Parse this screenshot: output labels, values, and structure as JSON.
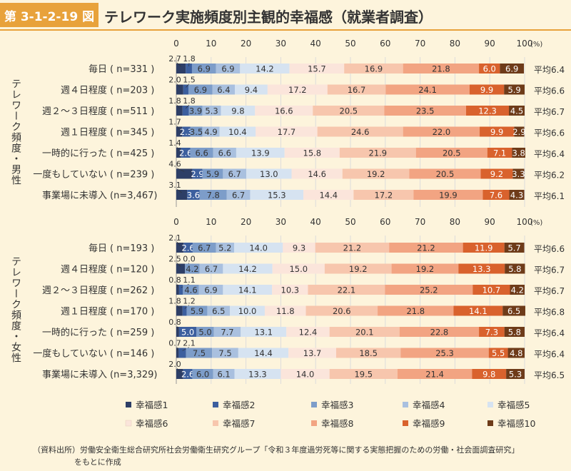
{
  "figure_no": "第 3-1-2-19 図",
  "title": "テレワーク実施頻度別主観的幸福感（就業者調査）",
  "source_note": {
    "label": "（資料出所）",
    "line1": "労働安全衛生総合研究所社会労働衛生研究グループ「令和３年度過労死等に関する実態把握のための労働・社会面調査研究」",
    "line2": "をもとに作成"
  },
  "avg_prefix": "平均",
  "percent_unit": "(%)",
  "chart_data": [
    {
      "type": "bar",
      "stacked": true,
      "orientation": "horizontal",
      "group_label": "テレワーク頻度・男性",
      "xlim": [
        0,
        100
      ],
      "xticks": [
        0,
        10,
        20,
        30,
        40,
        50,
        60,
        70,
        80,
        90,
        100
      ],
      "categories": [
        {
          "label": "毎日",
          "n": "( n=331 )",
          "avg": "6.4",
          "values": [
            2.7,
            1.8,
            6.9,
            6.9,
            14.2,
            15.7,
            16.9,
            21.8,
            6.0,
            6.9
          ],
          "labels": [
            "2.7",
            "1.8",
            "6.9",
            "6.9",
            "14.2",
            "15.7",
            "16.9",
            "21.8",
            "6.0",
            "6.9"
          ]
        },
        {
          "label": "週４日程度",
          "n": "( n=203 )",
          "avg": "6.6",
          "values": [
            2.0,
            1.5,
            6.9,
            6.4,
            9.4,
            17.2,
            16.7,
            24.1,
            9.9,
            5.9
          ],
          "labels": [
            "2.0",
            "1.5",
            "6.9",
            "6.4",
            "9.4",
            "17.2",
            "16.7",
            "24.1",
            "9.9",
            "5.9"
          ]
        },
        {
          "label": "週２～３日程度",
          "n": "( n=511 )",
          "avg": "6.7",
          "values": [
            1.8,
            1.8,
            3.9,
            5.3,
            9.8,
            16.6,
            20.5,
            23.5,
            12.3,
            4.5
          ],
          "labels": [
            "1.8",
            "1.8",
            "3.9",
            "5.3",
            "9.8",
            "16.6",
            "20.5",
            "23.5",
            "12.3",
            "4.5"
          ]
        },
        {
          "label": "週１日程度",
          "n": "( n=345 )",
          "avg": "6.6",
          "values": [
            1.7,
            2.3,
            3.5,
            4.9,
            10.4,
            17.7,
            24.6,
            22.0,
            9.9,
            2.9
          ],
          "labels": [
            "1.7",
            "2.3",
            "3.5",
            "4.9",
            "10.4",
            "17.7",
            "24.6",
            "22.0",
            "9.9",
            "2.9"
          ]
        },
        {
          "label": "一時的に行った",
          "n": "( n=425 )",
          "avg": "6.4",
          "values": [
            1.4,
            2.6,
            6.6,
            6.6,
            13.9,
            15.8,
            21.9,
            20.5,
            7.1,
            3.8
          ],
          "labels": [
            "1.4",
            "2.6",
            "6.6",
            "6.6",
            "13.9",
            "15.8",
            "21.9",
            "20.5",
            "7.1",
            "3.8"
          ]
        },
        {
          "label": "一度もしていない",
          "n": "( n=239 )",
          "avg": "6.2",
          "values": [
            4.6,
            2.9,
            5.9,
            6.7,
            13.0,
            14.6,
            19.2,
            20.5,
            9.2,
            3.3
          ],
          "labels": [
            "4.6",
            "2.9",
            "5.9",
            "6.7",
            "13.0",
            "14.6",
            "19.2",
            "20.5",
            "9.2",
            "3.3"
          ]
        },
        {
          "label": "事業場に未導入",
          "n": "(n=3,467)",
          "avg": "6.1",
          "values": [
            3.1,
            3.6,
            7.8,
            6.7,
            15.3,
            14.4,
            17.2,
            19.9,
            7.6,
            4.3
          ],
          "labels": [
            "3.1",
            "3.6",
            "7.8",
            "6.7",
            "15.3",
            "14.4",
            "17.2",
            "19.9",
            "7.6",
            "4.3"
          ]
        }
      ]
    },
    {
      "type": "bar",
      "stacked": true,
      "orientation": "horizontal",
      "group_label": "テレワーク頻度・女性",
      "xlim": [
        0,
        100
      ],
      "xticks": [
        0,
        10,
        20,
        30,
        40,
        50,
        60,
        70,
        80,
        90,
        100
      ],
      "categories": [
        {
          "label": "毎日",
          "n": "( n=193 )",
          "avg": "6.6",
          "values": [
            2.1,
            2.6,
            6.7,
            5.2,
            14.0,
            9.3,
            21.2,
            21.2,
            11.9,
            5.7
          ],
          "labels": [
            "2.1",
            "2.6",
            "6.7",
            "5.2",
            "14.0",
            "9.3",
            "21.2",
            "21.2",
            "11.9",
            "5.7"
          ]
        },
        {
          "label": "週４日程度",
          "n": "( n=120 )",
          "avg": "6.7",
          "values": [
            2.5,
            0.0,
            4.2,
            6.7,
            14.2,
            15.0,
            19.2,
            19.2,
            13.3,
            5.8
          ],
          "labels": [
            "2.5",
            "0.0",
            "4.2",
            "6.7",
            "14.2",
            "15.0",
            "19.2",
            "19.2",
            "13.3",
            "5.8"
          ]
        },
        {
          "label": "週２～３日程度",
          "n": "( n=262 )",
          "avg": "6.7",
          "values": [
            0.8,
            1.1,
            4.6,
            6.9,
            14.1,
            10.3,
            22.1,
            25.2,
            10.7,
            4.2
          ],
          "labels": [
            "0.8",
            "1.1",
            "4.6",
            "6.9",
            "14.1",
            "10.3",
            "22.1",
            "25.2",
            "10.7",
            "4.2"
          ]
        },
        {
          "label": "週１日程度",
          "n": "( n=170 )",
          "avg": "6.8",
          "values": [
            1.8,
            1.2,
            5.9,
            6.5,
            10.0,
            11.8,
            20.6,
            21.8,
            14.1,
            6.5
          ],
          "labels": [
            "1.8",
            "1.2",
            "5.9",
            "6.5",
            "10.0",
            "11.8",
            "20.6",
            "21.8",
            "14.1",
            "6.5"
          ]
        },
        {
          "label": "一時的に行った",
          "n": "( n=259 )",
          "avg": "6.4",
          "values": [
            0.8,
            5.0,
            5.0,
            7.7,
            13.1,
            12.4,
            20.1,
            22.8,
            7.3,
            5.8
          ],
          "labels": [
            "0.8",
            "5.0",
            "5.0",
            "7.7",
            "13.1",
            "12.4",
            "20.1",
            "22.8",
            "7.3",
            "5.8"
          ]
        },
        {
          "label": "一度もしていない",
          "n": "( n=146 )",
          "avg": "6.4",
          "values": [
            0.7,
            2.1,
            7.5,
            7.5,
            14.4,
            13.7,
            18.5,
            25.3,
            5.5,
            4.8
          ],
          "labels": [
            "0.7",
            "2.1",
            "7.5",
            "7.5",
            "14.4",
            "13.7",
            "18.5",
            "25.3",
            "5.5",
            "4.8"
          ]
        },
        {
          "label": "事業場に未導入",
          "n": "(n=3,329)",
          "avg": "6.5",
          "values": [
            2.0,
            2.6,
            6.0,
            6.1,
            13.3,
            14.0,
            19.5,
            21.4,
            9.8,
            5.3
          ],
          "labels": [
            "2.0",
            "2.6",
            "6.0",
            "6.1",
            "13.3",
            "14.0",
            "19.5",
            "21.4",
            "9.8",
            "5.3"
          ]
        }
      ]
    }
  ],
  "legend": [
    {
      "label": "幸福感1",
      "color": "#2d3e66"
    },
    {
      "label": "幸福感2",
      "color": "#3c5f9e"
    },
    {
      "label": "幸福感3",
      "color": "#7d9dc9"
    },
    {
      "label": "幸福感4",
      "color": "#a9c0df"
    },
    {
      "label": "幸福感5",
      "color": "#d6e3f1"
    },
    {
      "label": "幸福感6",
      "color": "#fbe5db"
    },
    {
      "label": "幸福感7",
      "color": "#f7c6ad"
    },
    {
      "label": "幸福感8",
      "color": "#f2a482"
    },
    {
      "label": "幸福感9",
      "color": "#d9622d"
    },
    {
      "label": "幸福感10",
      "color": "#6e3b19"
    }
  ]
}
